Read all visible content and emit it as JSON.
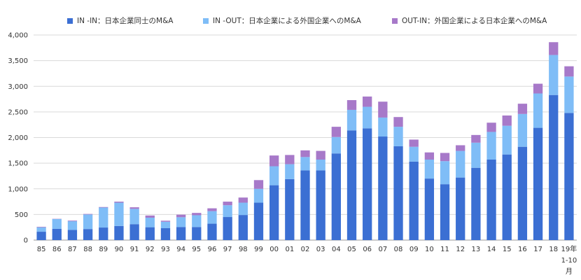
{
  "chart_data": {
    "type": "bar",
    "stacked": true,
    "categories": [
      "85",
      "86",
      "87",
      "88",
      "89",
      "90",
      "91",
      "92",
      "93",
      "94",
      "95",
      "96",
      "97",
      "98",
      "99",
      "00",
      "01",
      "02",
      "03",
      "04",
      "05",
      "06",
      "07",
      "08",
      "09",
      "10",
      "11",
      "12",
      "13",
      "14",
      "15",
      "16",
      "17",
      "18",
      "19年\n1-10\n月"
    ],
    "series": [
      {
        "name": "IN -IN：日本企業同士のM&A",
        "color": "#3B6FD3",
        "values": [
          163,
          219,
          199,
          216,
          245,
          275,
          311,
          251,
          232,
          256,
          255,
          320,
          450,
          490,
          730,
          1070,
          1190,
          1360,
          1360,
          1690,
          2140,
          2180,
          2020,
          1830,
          1530,
          1200,
          1090,
          1220,
          1410,
          1570,
          1670,
          1820,
          2190,
          2830,
          2480
        ]
      },
      {
        "name": "IN -OUT：日本企業による外国企業へのM&A",
        "color": "#7FBDF7",
        "values": [
          87,
          191,
          169,
          284,
          390,
          455,
          299,
          186,
          126,
          190,
          230,
          245,
          230,
          240,
          270,
          370,
          290,
          260,
          210,
          320,
          400,
          420,
          370,
          380,
          290,
          370,
          450,
          520,
          490,
          540,
          560,
          640,
          670,
          780,
          710
        ]
      },
      {
        "name": "OUT-IN：外国企業による日本企業へのM&A",
        "color": "#A779C9",
        "values": [
          10,
          5,
          12,
          10,
          10,
          20,
          30,
          43,
          20,
          50,
          45,
          55,
          70,
          100,
          170,
          210,
          180,
          130,
          170,
          200,
          190,
          200,
          310,
          190,
          140,
          140,
          160,
          110,
          150,
          180,
          200,
          200,
          190,
          250,
          200
        ]
      }
    ],
    "ylim": [
      0,
      4000
    ],
    "yticks": [
      "0",
      "500",
      "1,000",
      "1,500",
      "2,000",
      "2,500",
      "3,000",
      "3,500",
      "4,000"
    ],
    "ytick_values": [
      0,
      500,
      1000,
      1500,
      2000,
      2500,
      3000,
      3500,
      4000
    ],
    "grid": true,
    "legend_position": "top"
  }
}
